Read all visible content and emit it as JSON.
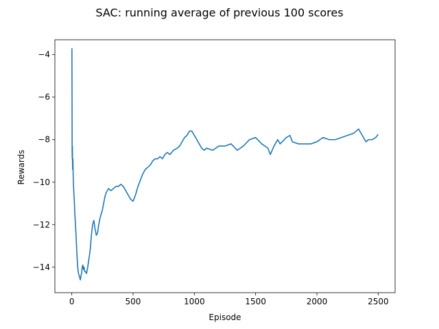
{
  "chart_data": {
    "type": "line",
    "title": "SAC: running average of previous 100 scores",
    "xlabel": "Episode",
    "ylabel": "Rewards",
    "xlim": [
      -138,
      2638
    ],
    "ylim": [
      -15.2,
      -3.3
    ],
    "xticks": [
      0,
      500,
      1000,
      1500,
      2000,
      2500
    ],
    "yticks": [
      -14,
      -12,
      -10,
      -8,
      -6,
      -4
    ],
    "grid": false,
    "legend": "none",
    "line_color": "#1f77b4",
    "series": [
      {
        "x": [
          1,
          2,
          3,
          4,
          5,
          6,
          7,
          8,
          9,
          10,
          12,
          15,
          18,
          20,
          25,
          30,
          35,
          40,
          45,
          50,
          55,
          60,
          65,
          70,
          75,
          80,
          85,
          90,
          95,
          100,
          105,
          110,
          120,
          130,
          140,
          150,
          160,
          170,
          180,
          190,
          200,
          210,
          220,
          230,
          240,
          250,
          260,
          270,
          280,
          290,
          300,
          320,
          340,
          360,
          380,
          400,
          420,
          440,
          460,
          480,
          500,
          520,
          540,
          560,
          580,
          600,
          620,
          640,
          660,
          680,
          700,
          720,
          740,
          760,
          780,
          800,
          830,
          860,
          880,
          900,
          920,
          940,
          960,
          980,
          1000,
          1020,
          1040,
          1060,
          1080,
          1100,
          1150,
          1200,
          1250,
          1300,
          1350,
          1400,
          1450,
          1500,
          1550,
          1600,
          1620,
          1650,
          1680,
          1700,
          1750,
          1780,
          1800,
          1850,
          1900,
          1950,
          2000,
          2050,
          2100,
          2150,
          2200,
          2250,
          2300,
          2340,
          2380,
          2400,
          2420,
          2450,
          2480,
          2500
        ],
        "y": [
          -3.7,
          -5.8,
          -8.6,
          -8.9,
          -8.3,
          -9.0,
          -9.4,
          -9.0,
          -8.9,
          -9.2,
          -9.8,
          -10.3,
          -10.6,
          -10.8,
          -11.5,
          -12.0,
          -12.5,
          -13.2,
          -13.7,
          -14.1,
          -14.3,
          -14.4,
          -14.5,
          -14.6,
          -14.4,
          -14.3,
          -14.0,
          -13.9,
          -14.1,
          -14.0,
          -14.2,
          -14.2,
          -14.3,
          -14.0,
          -13.6,
          -13.2,
          -12.5,
          -12.0,
          -11.8,
          -12.2,
          -12.5,
          -12.4,
          -12.0,
          -11.7,
          -11.5,
          -11.3,
          -11.0,
          -10.7,
          -10.5,
          -10.4,
          -10.3,
          -10.4,
          -10.3,
          -10.2,
          -10.2,
          -10.1,
          -10.2,
          -10.4,
          -10.6,
          -10.8,
          -10.9,
          -10.6,
          -10.2,
          -9.9,
          -9.6,
          -9.4,
          -9.3,
          -9.2,
          -9.0,
          -8.9,
          -8.9,
          -8.8,
          -8.9,
          -8.7,
          -8.6,
          -8.7,
          -8.5,
          -8.4,
          -8.3,
          -8.1,
          -7.9,
          -7.8,
          -7.6,
          -7.6,
          -7.8,
          -8.0,
          -8.2,
          -8.4,
          -8.5,
          -8.4,
          -8.5,
          -8.3,
          -8.3,
          -8.2,
          -8.5,
          -8.3,
          -8.0,
          -7.9,
          -8.2,
          -8.4,
          -8.7,
          -8.3,
          -8.0,
          -8.2,
          -7.9,
          -7.8,
          -8.1,
          -8.2,
          -8.2,
          -8.2,
          -8.1,
          -7.9,
          -8.0,
          -8.0,
          -7.9,
          -7.8,
          -7.7,
          -7.5,
          -7.9,
          -8.1,
          -8.0,
          -8.0,
          -7.9,
          -7.75
        ]
      }
    ]
  }
}
